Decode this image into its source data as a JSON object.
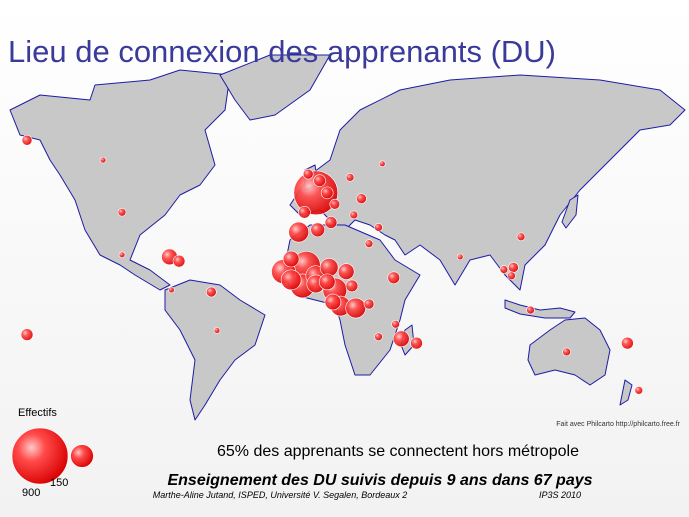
{
  "title": "Lieu de connexion des apprenants (DU)",
  "legend": {
    "title": "Effectifs",
    "sizes": [
      900,
      150
    ]
  },
  "credit": "Fait avec Philcarto  http://philcarto.free.fr",
  "statement": "65% des apprenants se connectent hors métropole",
  "headline": "Enseignement des DU suivis depuis 9 ans dans 67 pays",
  "footer": {
    "author": "Marthe-Aline Jutand, ISPED, Université V. Segalen, Bordeaux 2",
    "event": "IP3S 2010"
  },
  "bubbles": [
    {
      "lon": 2,
      "lat": 47,
      "value": 555
    },
    {
      "lon": -2,
      "lat": 53,
      "value": 29
    },
    {
      "lon": 4,
      "lat": 51,
      "value": 41
    },
    {
      "lon": 8,
      "lat": 47,
      "value": 41
    },
    {
      "lon": -4,
      "lat": 40,
      "value": 41
    },
    {
      "lon": 12,
      "lat": 43,
      "value": 29
    },
    {
      "lon": 26,
      "lat": 45,
      "value": 29
    },
    {
      "lon": 20,
      "lat": 52,
      "value": 18
    },
    {
      "lon": 37,
      "lat": 56,
      "value": 10
    },
    {
      "lon": 22,
      "lat": 39,
      "value": 18
    },
    {
      "lon": -150,
      "lat": 62,
      "value": 29
    },
    {
      "lon": -110,
      "lat": 57,
      "value": 10
    },
    {
      "lon": -100,
      "lat": 40,
      "value": 18
    },
    {
      "lon": -100,
      "lat": 22,
      "value": 10
    },
    {
      "lon": -150,
      "lat": -17,
      "value": 41
    },
    {
      "lon": -75,
      "lat": 21,
      "value": 73
    },
    {
      "lon": -70,
      "lat": 19,
      "value": 41
    },
    {
      "lon": -53,
      "lat": 4,
      "value": 29
    },
    {
      "lon": -74,
      "lat": 5,
      "value": 10
    },
    {
      "lon": -50,
      "lat": -15,
      "value": 10
    },
    {
      "lon": -7,
      "lat": 32,
      "value": 115
    },
    {
      "lon": 3,
      "lat": 33,
      "value": 56
    },
    {
      "lon": 10,
      "lat": 36,
      "value": 41
    },
    {
      "lon": -15,
      "lat": 14,
      "value": 165
    },
    {
      "lon": -11,
      "lat": 20,
      "value": 73
    },
    {
      "lon": -3,
      "lat": 17,
      "value": 225
    },
    {
      "lon": -11,
      "lat": 10,
      "value": 115
    },
    {
      "lon": -5,
      "lat": 7,
      "value": 165
    },
    {
      "lon": 2,
      "lat": 12,
      "value": 115
    },
    {
      "lon": 2,
      "lat": 8,
      "value": 93
    },
    {
      "lon": 9,
      "lat": 16,
      "value": 93
    },
    {
      "lon": 8,
      "lat": 9,
      "value": 73
    },
    {
      "lon": 12,
      "lat": 5,
      "value": 165
    },
    {
      "lon": 11,
      "lat": -1,
      "value": 73
    },
    {
      "lon": 15,
      "lat": -3,
      "value": 115
    },
    {
      "lon": 23,
      "lat": -4,
      "value": 115
    },
    {
      "lon": 18,
      "lat": 14,
      "value": 73
    },
    {
      "lon": 21,
      "lat": 7,
      "value": 41
    },
    {
      "lon": 30,
      "lat": -2,
      "value": 29
    },
    {
      "lon": 43,
      "lat": 11,
      "value": 41
    },
    {
      "lon": 30,
      "lat": 27,
      "value": 18
    },
    {
      "lon": 35,
      "lat": 34,
      "value": 18
    },
    {
      "lon": 47,
      "lat": -19,
      "value": 73
    },
    {
      "lon": 55,
      "lat": -21,
      "value": 41
    },
    {
      "lon": 44,
      "lat": -12,
      "value": 18
    },
    {
      "lon": 35,
      "lat": -18,
      "value": 18
    },
    {
      "lon": 78,
      "lat": 21,
      "value": 10
    },
    {
      "lon": 106,
      "lat": 16,
      "value": 29
    },
    {
      "lon": 105,
      "lat": 12,
      "value": 18
    },
    {
      "lon": 101,
      "lat": 15,
      "value": 18
    },
    {
      "lon": 110,
      "lat": 30,
      "value": 18
    },
    {
      "lon": 115,
      "lat": -5,
      "value": 18
    },
    {
      "lon": 166,
      "lat": -21,
      "value": 41
    },
    {
      "lon": 134,
      "lat": -25,
      "value": 18
    },
    {
      "lon": 172,
      "lat": -41,
      "value": 18
    }
  ]
}
